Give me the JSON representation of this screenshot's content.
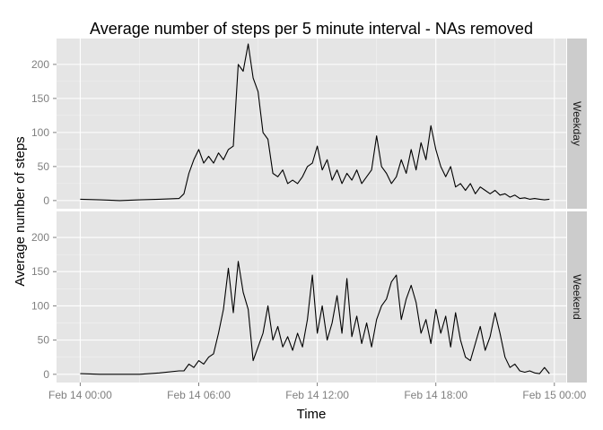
{
  "chart_data": {
    "type": "line",
    "title": "Average number of steps per 5 minute interval - NAs removed",
    "xlabel": "Time",
    "ylabel": "Average number of steps",
    "x_ticks": [
      "Feb 14 00:00",
      "Feb 14 06:00",
      "Feb 14 12:00",
      "Feb 14 18:00",
      "Feb 15 00:00"
    ],
    "x_tick_hours": [
      0,
      6,
      12,
      18,
      24
    ],
    "xlim_hours": [
      -1.2,
      24.6
    ],
    "y_ticks": [
      0,
      50,
      100,
      150,
      200
    ],
    "ylim": [
      -12,
      238
    ],
    "grid": true,
    "facet_strip_position": "right",
    "colors": {
      "panel_background": "#e5e5e5",
      "grid_major": "#ffffff",
      "grid_minor": "#f2f2f2",
      "strip_background": "#cccccc",
      "line": "#000000",
      "tick_text": "#7f7f7f"
    },
    "panels": [
      {
        "facet": "Weekday",
        "x_hours": [
          0,
          1,
          2,
          3,
          4,
          5,
          5.25,
          5.5,
          5.75,
          6,
          6.25,
          6.5,
          6.75,
          7,
          7.25,
          7.5,
          7.75,
          8,
          8.25,
          8.5,
          8.75,
          9,
          9.25,
          9.5,
          9.75,
          10,
          10.25,
          10.5,
          10.75,
          11,
          11.25,
          11.5,
          11.75,
          12,
          12.25,
          12.5,
          12.75,
          13,
          13.25,
          13.5,
          13.75,
          14,
          14.25,
          14.5,
          14.75,
          15,
          15.25,
          15.5,
          15.75,
          16,
          16.25,
          16.5,
          16.75,
          17,
          17.25,
          17.5,
          17.75,
          18,
          18.25,
          18.5,
          18.75,
          19,
          19.25,
          19.5,
          19.75,
          20,
          20.25,
          20.5,
          20.75,
          21,
          21.25,
          21.5,
          21.75,
          22,
          22.25,
          22.5,
          22.75,
          23,
          23.25,
          23.5,
          23.75
        ],
        "values": [
          2,
          1,
          0,
          1,
          2,
          3,
          10,
          40,
          60,
          75,
          55,
          65,
          55,
          70,
          60,
          75,
          80,
          200,
          190,
          230,
          180,
          160,
          100,
          90,
          40,
          35,
          45,
          25,
          30,
          25,
          35,
          50,
          55,
          80,
          45,
          60,
          30,
          45,
          25,
          40,
          30,
          45,
          25,
          35,
          45,
          95,
          50,
          40,
          25,
          35,
          60,
          40,
          75,
          45,
          85,
          60,
          110,
          75,
          50,
          35,
          50,
          20,
          25,
          15,
          25,
          10,
          20,
          15,
          10,
          15,
          8,
          10,
          5,
          8,
          3,
          4,
          2,
          3,
          2,
          1,
          2
        ]
      },
      {
        "facet": "Weekend",
        "x_hours": [
          0,
          1,
          2,
          3,
          4,
          5,
          5.25,
          5.5,
          5.75,
          6,
          6.25,
          6.5,
          6.75,
          7,
          7.25,
          7.5,
          7.75,
          8,
          8.25,
          8.5,
          8.75,
          9,
          9.25,
          9.5,
          9.75,
          10,
          10.25,
          10.5,
          10.75,
          11,
          11.25,
          11.5,
          11.75,
          12,
          12.25,
          12.5,
          12.75,
          13,
          13.25,
          13.5,
          13.75,
          14,
          14.25,
          14.5,
          14.75,
          15,
          15.25,
          15.5,
          15.75,
          16,
          16.25,
          16.5,
          16.75,
          17,
          17.25,
          17.5,
          17.75,
          18,
          18.25,
          18.5,
          18.75,
          19,
          19.25,
          19.5,
          19.75,
          20,
          20.25,
          20.5,
          20.75,
          21,
          21.25,
          21.5,
          21.75,
          22,
          22.25,
          22.5,
          22.75,
          23,
          23.25,
          23.5,
          23.75
        ],
        "values": [
          1,
          0,
          0,
          0,
          2,
          5,
          5,
          15,
          10,
          20,
          15,
          25,
          30,
          60,
          95,
          155,
          90,
          165,
          120,
          95,
          20,
          40,
          60,
          100,
          50,
          70,
          40,
          55,
          35,
          60,
          40,
          80,
          145,
          60,
          100,
          50,
          75,
          115,
          60,
          140,
          55,
          85,
          45,
          75,
          40,
          80,
          100,
          110,
          135,
          145,
          80,
          110,
          130,
          105,
          60,
          80,
          45,
          95,
          60,
          85,
          40,
          90,
          50,
          25,
          20,
          45,
          70,
          35,
          55,
          90,
          60,
          25,
          10,
          15,
          5,
          3,
          5,
          2,
          1,
          10,
          1
        ]
      }
    ]
  }
}
